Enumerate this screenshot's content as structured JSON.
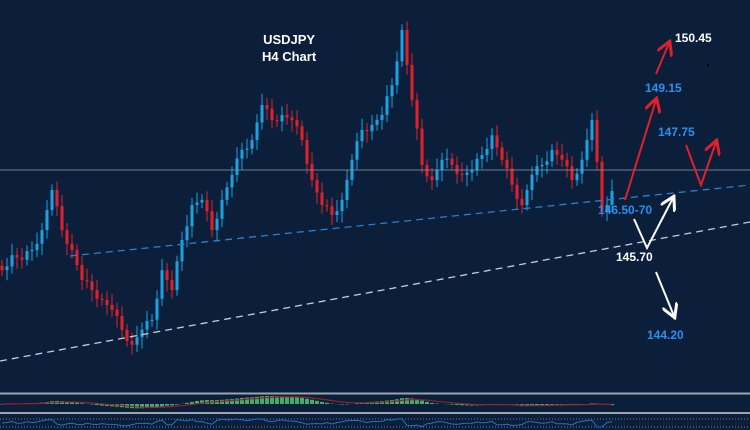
{
  "title": {
    "symbol": "USDJPY",
    "timeframe": "H4 Chart"
  },
  "colors": {
    "background": "#0b1f3a",
    "bull": "#1aa3e0",
    "bear": "#e0202a",
    "target_blue": "#2b8ff0",
    "white": "#ffffff",
    "macd_hist": "#3fae6a",
    "macd_signal": "#9a1f2a",
    "osc_line": "#2a6fc0"
  },
  "levels": {
    "t1": "150.45",
    "t2": "149.15",
    "t3": "147.75",
    "support": "146.50-70",
    "s1": "145.70",
    "s2": "144.20"
  },
  "chart_data": {
    "type": "candlestick",
    "symbol": "USDJPY",
    "timeframe": "H4",
    "closes": [
      145.53,
      145.85,
      145.75,
      145.96,
      146.38,
      147.23,
      146.38,
      145.96,
      145.32,
      145.11,
      144.9,
      144.69,
      144.27,
      143.95,
      144.27,
      144.48,
      145.53,
      145.11,
      146.17,
      146.91,
      147.02,
      146.38,
      147.02,
      147.55,
      148.08,
      148.29,
      149.03,
      148.71,
      148.82,
      148.71,
      148.29,
      147.44,
      146.91,
      146.7,
      147.02,
      147.87,
      148.5,
      148.61,
      148.82,
      149.45,
      150.62,
      149.14,
      147.76,
      147.44,
      147.87,
      147.76,
      147.55,
      147.65,
      147.97,
      148.39,
      147.87,
      147.34,
      146.91,
      147.55,
      147.76,
      148.08,
      147.87,
      147.44,
      147.87,
      148.71,
      146.78,
      147.21
    ],
    "horizontal_line": 148.4,
    "targets_up": [
      149.15,
      150.45
    ],
    "alt_path": [
      147.75
    ],
    "support_zone": [
      146.5,
      146.7
    ],
    "targets_down": [
      145.7,
      144.2
    ]
  }
}
